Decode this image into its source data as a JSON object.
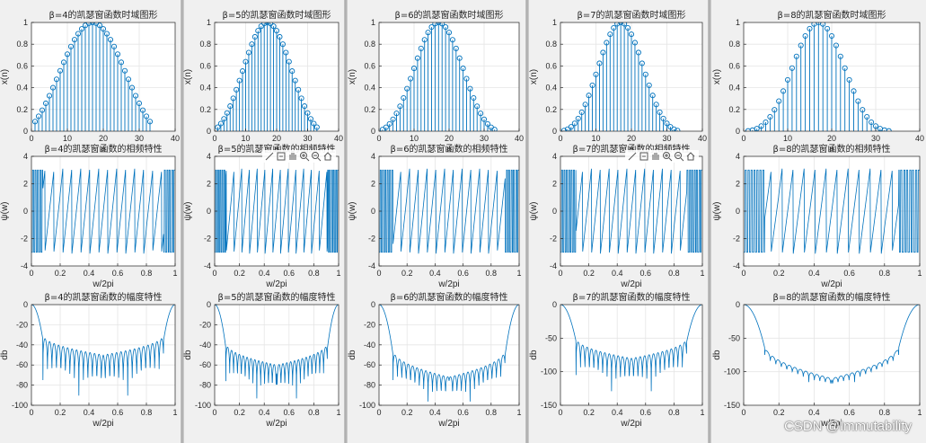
{
  "watermark": "CSDN @Immutability",
  "colors": {
    "line": "#0072BD",
    "grid": "#e5e5e5",
    "axis": "#262626"
  },
  "toolbar_icons": [
    "brush-icon",
    "data-tip-icon",
    "pan-hand-icon",
    "zoom-in-icon",
    "zoom-out-icon",
    "home-icon"
  ],
  "chart_data": [
    {
      "type": "stem",
      "beta": 4,
      "title": "β=4的凯瑟窗函数时域图形",
      "xlabel": "n",
      "ylabel": "x(n)",
      "xlim": [
        0,
        40
      ],
      "ylim": [
        0,
        1
      ],
      "xticks": [
        0,
        10,
        20,
        30,
        40
      ],
      "yticks": [
        0,
        0.2,
        0.4,
        0.6,
        0.8,
        1
      ],
      "n_points": 33,
      "y_end": 0.0703
    },
    {
      "type": "stem",
      "beta": 5,
      "title": "β=5的凯瑟窗函数时域图形",
      "xlabel": "n",
      "ylabel": "x(n)",
      "xlim": [
        0,
        40
      ],
      "ylim": [
        0,
        1
      ],
      "xticks": [
        0,
        10,
        20,
        30,
        40
      ],
      "yticks": [
        0,
        0.2,
        0.4,
        0.6,
        0.8,
        1
      ],
      "n_points": 33,
      "y_end": 0.0368
    },
    {
      "type": "stem",
      "beta": 6,
      "title": "β=6的凯瑟窗函数时域图形",
      "xlabel": "n",
      "ylabel": "x(n)",
      "xlim": [
        0,
        40
      ],
      "ylim": [
        0,
        1
      ],
      "xticks": [
        0,
        10,
        20,
        30,
        40
      ],
      "yticks": [
        0,
        0.2,
        0.4,
        0.6,
        0.8,
        1
      ],
      "n_points": 33,
      "y_end": 0.0149
    },
    {
      "type": "stem",
      "beta": 7,
      "title": "β=7的凯瑟窗函数时域图形",
      "xlabel": "n",
      "ylabel": "x(n)",
      "xlim": [
        0,
        40
      ],
      "ylim": [
        0,
        1
      ],
      "xticks": [
        0,
        10,
        20,
        30,
        40
      ],
      "yticks": [
        0,
        0.2,
        0.4,
        0.6,
        0.8,
        1
      ],
      "n_points": 33,
      "y_end": 0.0069
    },
    {
      "type": "stem",
      "beta": 8,
      "title": "β=8的凯瑟窗函数时域图形",
      "xlabel": "n",
      "ylabel": "x(n)",
      "xlim": [
        0,
        40
      ],
      "ylim": [
        0,
        1
      ],
      "xticks": [
        0,
        10,
        20,
        30,
        40
      ],
      "yticks": [
        0,
        0.2,
        0.4,
        0.6,
        0.8,
        1
      ],
      "n_points": 33,
      "y_end": 0.0023
    },
    {
      "type": "line",
      "kind": "phase",
      "beta": 4,
      "title": "β=4的凯瑟窗函数的相频特性",
      "xlabel": "w/2pi",
      "ylabel": "ψ(w)",
      "xlim": [
        0,
        1
      ],
      "ylim": [
        -4,
        4
      ],
      "xticks": [
        0,
        0.2,
        0.4,
        0.6,
        0.8,
        1
      ],
      "yticks": [
        -4,
        -2,
        0,
        2,
        4
      ],
      "wraps": 16,
      "sidelobe_start": 0.08
    },
    {
      "type": "line",
      "kind": "phase",
      "beta": 5,
      "title": "β=5的凯瑟窗函数的相频特性",
      "xlabel": "w/2pi",
      "ylabel": "ψ(w)",
      "xlim": [
        0,
        1
      ],
      "ylim": [
        -4,
        4
      ],
      "xticks": [
        0,
        0.2,
        0.4,
        0.6,
        0.8,
        1
      ],
      "yticks": [
        -4,
        -2,
        0,
        2,
        4
      ],
      "wraps": 16,
      "sidelobe_start": 0.09
    },
    {
      "type": "line",
      "kind": "phase",
      "beta": 6,
      "title": "β=6的凯瑟窗函数的相频特性",
      "xlabel": "w/2pi",
      "ylabel": "ψ(w)",
      "xlim": [
        0,
        1
      ],
      "ylim": [
        -4,
        4
      ],
      "xticks": [
        0,
        0.2,
        0.4,
        0.6,
        0.8,
        1
      ],
      "yticks": [
        -4,
        -2,
        0,
        2,
        4
      ],
      "wraps": 16,
      "sidelobe_start": 0.1
    },
    {
      "type": "line",
      "kind": "phase",
      "beta": 7,
      "title": "β=7的凯瑟窗函数的相频特性",
      "xlabel": "w/2pi",
      "ylabel": "ψ(w)",
      "xlim": [
        0,
        1
      ],
      "ylim": [
        -4,
        4
      ],
      "xticks": [
        0,
        0.2,
        0.4,
        0.6,
        0.8,
        1
      ],
      "yticks": [
        -4,
        -2,
        0,
        2,
        4
      ],
      "wraps": 16,
      "sidelobe_start": 0.11
    },
    {
      "type": "line",
      "kind": "phase",
      "beta": 8,
      "title": "β=8的凯瑟窗函数的相频特性",
      "xlabel": "w/2pi",
      "ylabel": "ψ(w)",
      "xlim": [
        0,
        1
      ],
      "ylim": [
        -4,
        4
      ],
      "xticks": [
        0,
        0.2,
        0.4,
        0.6,
        0.8,
        1
      ],
      "yticks": [
        -4,
        -2,
        0,
        2,
        4
      ],
      "wraps": 16,
      "sidelobe_start": 0.12
    },
    {
      "type": "line",
      "kind": "magnitude",
      "beta": 4,
      "title": "β=4的凯瑟窗函数的幅度特性",
      "xlabel": "w/2pi",
      "ylabel": "db",
      "xlim": [
        0,
        1
      ],
      "ylim": [
        -100,
        0
      ],
      "xticks": [
        0,
        0.2,
        0.4,
        0.6,
        0.8,
        1
      ],
      "yticks": [
        -100,
        -80,
        -60,
        -40,
        -20,
        0
      ],
      "main_lobe_edge": 0.08,
      "sidelobe_edge_db": -30,
      "sidelobe_mid_db": -50,
      "notch_depth_db": 45
    },
    {
      "type": "line",
      "kind": "magnitude",
      "beta": 5,
      "title": "β=5的凯瑟窗函数的幅度特性",
      "xlabel": "w/2pi",
      "ylabel": "db",
      "xlim": [
        0,
        1
      ],
      "ylim": [
        -100,
        0
      ],
      "xticks": [
        0,
        0.2,
        0.4,
        0.6,
        0.8,
        1
      ],
      "yticks": [
        -100,
        -80,
        -60,
        -40,
        -20,
        0
      ],
      "main_lobe_edge": 0.09,
      "sidelobe_edge_db": -38,
      "sidelobe_mid_db": -60,
      "notch_depth_db": 38
    },
    {
      "type": "line",
      "kind": "magnitude",
      "beta": 6,
      "title": "β=6的凯瑟窗函数的幅度特性",
      "xlabel": "w/2pi",
      "ylabel": "db",
      "xlim": [
        0,
        1
      ],
      "ylim": [
        -100,
        0
      ],
      "xticks": [
        0,
        0.2,
        0.4,
        0.6,
        0.8,
        1
      ],
      "yticks": [
        -100,
        -80,
        -60,
        -40,
        -20,
        0
      ],
      "main_lobe_edge": 0.1,
      "sidelobe_edge_db": -45,
      "sidelobe_mid_db": -72,
      "notch_depth_db": 30
    },
    {
      "type": "line",
      "kind": "magnitude",
      "beta": 7,
      "title": "β=7的凯瑟窗函数的幅度特性",
      "xlabel": "w/2pi",
      "ylabel": "db",
      "xlim": [
        0,
        1
      ],
      "ylim": [
        -150,
        0
      ],
      "xticks": [
        0,
        0.2,
        0.4,
        0.6,
        0.8,
        1
      ],
      "yticks": [
        -150,
        -100,
        -50,
        0
      ],
      "main_lobe_edge": 0.11,
      "sidelobe_edge_db": -50,
      "sidelobe_mid_db": -80,
      "notch_depth_db": 55
    },
    {
      "type": "line",
      "kind": "magnitude",
      "beta": 8,
      "title": "β=8的凯瑟窗函数的幅度特性",
      "xlabel": "w/2pi",
      "ylabel": "db",
      "xlim": [
        0,
        1
      ],
      "ylim": [
        -150,
        0
      ],
      "xticks": [
        0,
        0.2,
        0.4,
        0.6,
        0.8,
        1
      ],
      "yticks": [
        -150,
        -100,
        -50,
        0
      ],
      "main_lobe_edge": 0.12,
      "sidelobe_edge_db": -60,
      "sidelobe_mid_db": -110,
      "notch_depth_db": 15
    }
  ]
}
